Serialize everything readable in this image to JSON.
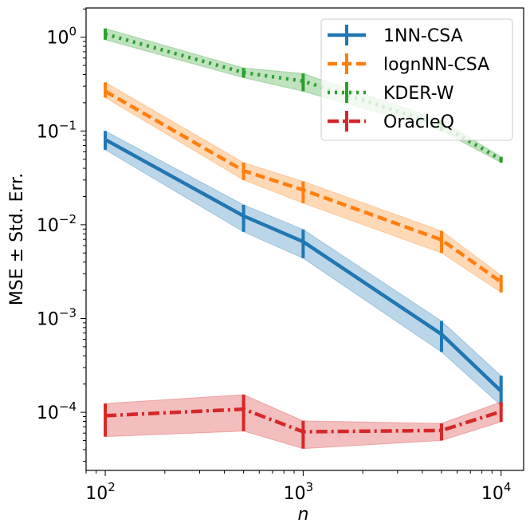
{
  "chart_data": {
    "type": "line",
    "title": "",
    "xlabel": "n",
    "ylabel": "MSE ± Std. Err.",
    "xscale": "log",
    "yscale": "log",
    "xlim": [
      80,
      13000
    ],
    "ylim": [
      2.4e-05,
      2.05
    ],
    "x": [
      100,
      500,
      1000,
      5000,
      10000
    ],
    "xticks": [
      {
        "value": 100,
        "base": "10",
        "exp": "2"
      },
      {
        "value": 1000,
        "base": "10",
        "exp": "3"
      },
      {
        "value": 10000,
        "base": "10",
        "exp": "4"
      }
    ],
    "yticks": [
      {
        "value": 1,
        "base": "10",
        "exp": "0"
      },
      {
        "value": 0.1,
        "base": "10",
        "exp": "−1"
      },
      {
        "value": 0.01,
        "base": "10",
        "exp": "−2"
      },
      {
        "value": 0.001,
        "base": "10",
        "exp": "−3"
      },
      {
        "value": 0.0001,
        "base": "10",
        "exp": "−4"
      }
    ],
    "grid": false,
    "legend_position": "top-right",
    "series": [
      {
        "name": "1NN-CSA",
        "color": "#1f77b4",
        "linestyle": "solid",
        "values": [
          0.081,
          0.0124,
          0.0066,
          0.00068,
          0.000168
        ],
        "lower": [
          0.063,
          0.0084,
          0.0044,
          0.00044,
          0.000118
        ],
        "upper": [
          0.1,
          0.0163,
          0.0089,
          0.00094,
          0.000245
        ]
      },
      {
        "name": "lognNN-CSA",
        "color": "#ff7f0e",
        "linestyle": "dashed",
        "values": [
          0.265,
          0.0377,
          0.0235,
          0.0069,
          0.00245
        ],
        "lower": [
          0.227,
          0.03,
          0.017,
          0.005,
          0.0019
        ],
        "upper": [
          0.33,
          0.046,
          0.029,
          0.0086,
          0.0029
        ]
      },
      {
        "name": "KDER-W",
        "color": "#2ca02c",
        "linestyle": "dotted",
        "values": [
          1.08,
          0.42,
          0.34,
          0.115,
          0.0496
        ],
        "lower": [
          0.94,
          0.37,
          0.265,
          0.1,
          0.046
        ],
        "upper": [
          1.24,
          0.47,
          0.41,
          0.13,
          0.053
        ]
      },
      {
        "name": "OracleQ",
        "color": "#d62728",
        "linestyle": "dashdot",
        "values": [
          9.2e-05,
          0.000108,
          6.2e-05,
          6.4e-05,
          0.000102
        ],
        "lower": [
          5.5e-05,
          6.3e-05,
          4.1e-05,
          5e-05,
          7.9e-05
        ],
        "upper": [
          0.000124,
          0.000154,
          8.1e-05,
          7.6e-05,
          0.000129
        ]
      }
    ]
  }
}
